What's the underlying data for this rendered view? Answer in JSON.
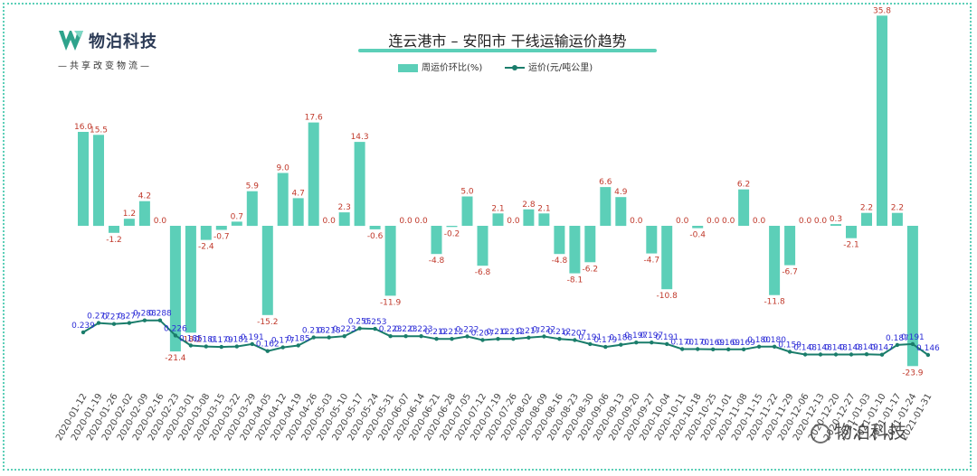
{
  "brand": {
    "name": "物泊科技",
    "slogan": "—共享改变物流—",
    "watermark": "物泊科技"
  },
  "chart_data": {
    "type": "bar",
    "title": "连云港市 – 安阳市  干线运输运价趋势",
    "categories": [
      "2020-01-12",
      "2020-01-19",
      "2020-01-26",
      "2020-02-02",
      "2020-02-09",
      "2020-02-16",
      "2020-02-23",
      "2020-03-01",
      "2020-03-08",
      "2020-03-15",
      "2020-03-22",
      "2020-03-29",
      "2020-04-05",
      "2020-04-12",
      "2020-04-19",
      "2020-04-26",
      "2020-05-03",
      "2020-05-10",
      "2020-05-17",
      "2020-05-24",
      "2020-05-31",
      "2020-06-07",
      "2020-06-14",
      "2020-06-21",
      "2020-06-28",
      "2020-07-05",
      "2020-07-12",
      "2020-07-19",
      "2020-07-26",
      "2020-08-02",
      "2020-08-09",
      "2020-08-16",
      "2020-08-23",
      "2020-08-30",
      "2020-09-06",
      "2020-09-13",
      "2020-09-20",
      "2020-09-27",
      "2020-10-04",
      "2020-10-11",
      "2020-10-18",
      "2020-10-25",
      "2020-11-01",
      "2020-11-08",
      "2020-11-15",
      "2020-11-22",
      "2020-11-29",
      "2020-12-06",
      "2020-12-13",
      "2020-12-20",
      "2020-12-27",
      "2021-01-03",
      "2021-01-10",
      "2021-01-17",
      "2021-01-24",
      "2021-01-31"
    ],
    "series": [
      {
        "name": "周运价环比(%)",
        "type": "bar",
        "color": "#5ccfb8",
        "values": [
          16.0,
          15.5,
          -1.2,
          1.2,
          4.2,
          0.0,
          -21.4,
          -18.2,
          -2.4,
          -0.7,
          0.7,
          5.9,
          -15.2,
          9.0,
          4.7,
          17.6,
          0.0,
          2.3,
          14.3,
          -0.6,
          -11.9,
          0.0,
          0.0,
          -4.8,
          -0.2,
          5.0,
          -6.8,
          2.1,
          0.0,
          2.8,
          2.1,
          -4.8,
          -8.1,
          -6.2,
          6.6,
          4.9,
          0.0,
          -4.7,
          -10.8,
          0.0,
          -0.4,
          0.0,
          0.0,
          6.2,
          0.0,
          -11.8,
          -6.7,
          0.0,
          0.0,
          0.3,
          -2.1,
          2.2,
          35.8,
          2.2,
          -23.9,
          null
        ]
      },
      {
        "name": "运价(元/吨公里)",
        "type": "line",
        "color": "#1a7d6b",
        "values": [
          0.239,
          0.277,
          0.273,
          0.277,
          0.288,
          0.288,
          0.226,
          0.185,
          0.181,
          0.179,
          0.181,
          0.191,
          0.162,
          0.177,
          0.185,
          0.218,
          0.218,
          0.223,
          0.255,
          0.253,
          0.223,
          0.223,
          0.223,
          0.212,
          0.212,
          0.222,
          0.207,
          0.212,
          0.212,
          0.217,
          0.222,
          0.212,
          0.207,
          0.191,
          0.179,
          0.188,
          0.197,
          0.197,
          0.191,
          0.17,
          0.17,
          0.169,
          0.169,
          0.169,
          0.18,
          0.18,
          0.159,
          0.148,
          0.148,
          0.148,
          0.148,
          0.149,
          0.147,
          0.187,
          0.191,
          0.146
        ]
      }
    ],
    "legend_position": "top-center",
    "grid": false
  }
}
